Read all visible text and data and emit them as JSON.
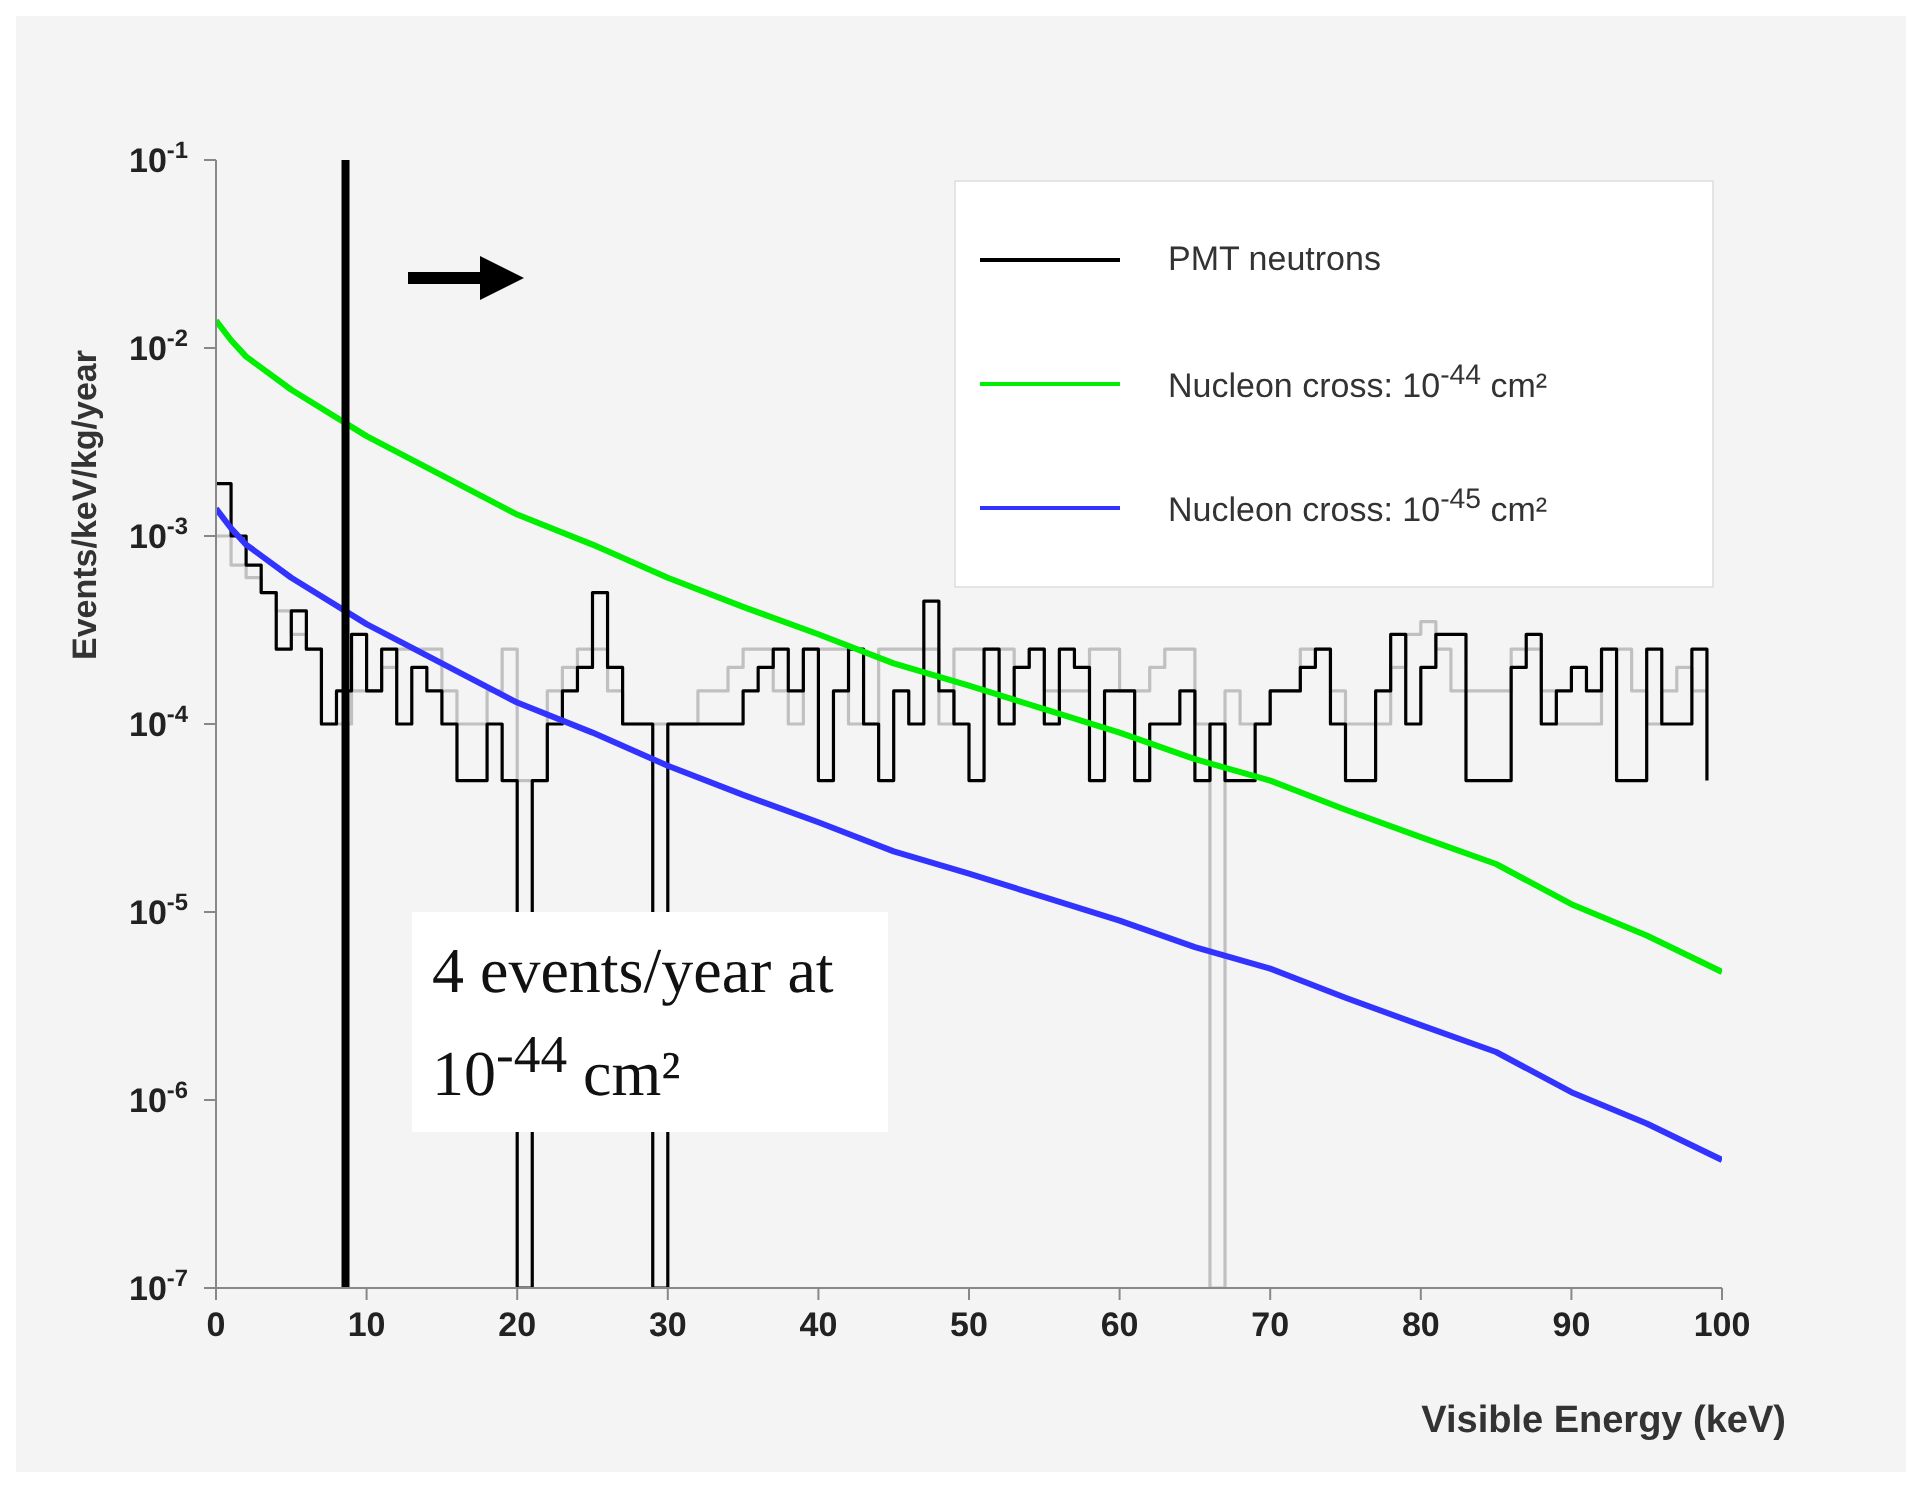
{
  "chart_data": {
    "type": "line",
    "xlabel": "Visible Energy (keV)",
    "ylabel": "Events/keV/kg/year",
    "log": "y",
    "legend": "top right",
    "xlim": [
      0,
      100
    ],
    "xticks": [
      0,
      10,
      20,
      30,
      40,
      50,
      60,
      70,
      80,
      90,
      100
    ],
    "ylim": [
      1e-07,
      0.1
    ],
    "yticks": [
      {
        "value": 1e-07,
        "label": "10$^{-7}$"
      },
      {
        "value": 1e-06,
        "label": "10$^{-6}$"
      },
      {
        "value": 1e-05,
        "label": "10$^{-5}$"
      },
      {
        "value": 0.0001,
        "label": "10$^{-4}$"
      },
      {
        "value": 0.001,
        "label": "10$^{-3}$"
      },
      {
        "value": 0.01,
        "label": "10$^{-2}$"
      },
      {
        "value": 0.1,
        "label": "10$^{-1}$"
      }
    ],
    "series": [
      {
        "type": "step",
        "color": "#c0c0c0",
        "x": [
          0,
          1,
          2,
          3,
          4,
          5,
          6,
          7,
          8,
          9,
          10,
          11,
          12,
          13,
          14,
          15,
          16,
          17,
          18,
          19,
          20,
          21,
          22,
          23,
          24,
          25,
          26,
          27,
          28,
          29,
          30,
          31,
          32,
          33,
          34,
          35,
          36,
          37,
          38,
          39,
          40,
          41,
          42,
          43,
          44,
          45,
          46,
          47,
          48,
          49,
          50,
          51,
          52,
          53,
          54,
          55,
          56,
          57,
          58,
          59,
          60,
          61,
          62,
          63,
          64,
          65,
          66,
          67,
          68,
          69,
          70,
          71,
          72,
          73,
          74,
          75,
          76,
          77,
          78,
          79,
          80,
          81,
          82,
          83,
          84,
          85,
          86,
          87,
          88,
          89,
          90,
          91,
          92,
          93,
          94,
          95,
          96,
          97,
          98,
          99
        ],
        "values": [
          0.001,
          0.0007,
          0.0006,
          0.0005,
          0.0004,
          0.0003,
          0.00025,
          0.0001,
          0.0001,
          0.00015,
          0.00015,
          0.0002,
          0.00025,
          0.00025,
          0.00025,
          0.00015,
          0.0001,
          0.0001,
          0.00015,
          0.00025,
          5e-05,
          5e-05,
          0.00015,
          0.0002,
          0.00025,
          0.00025,
          0.00015,
          0.0001,
          0.0001,
          0.0001,
          0.0001,
          0.0001,
          0.00015,
          0.00015,
          0.0002,
          0.00025,
          0.00025,
          0.00015,
          0.0001,
          0.00025,
          0.00025,
          0.00025,
          0.0001,
          0.0001,
          0.00025,
          0.00025,
          0.00025,
          0.00025,
          0.0001,
          0.00025,
          0.00025,
          0.00025,
          0.00025,
          0.0002,
          0.00025,
          0.00015,
          0.00015,
          0.00015,
          0.00025,
          0.00025,
          0.00015,
          0.00015,
          0.0002,
          0.00025,
          0.00025,
          0.0001,
          1e-07,
          0.00015,
          0.0001,
          0.0001,
          0.00015,
          0.00015,
          0.00025,
          0.00025,
          0.00015,
          0.0001,
          0.0001,
          0.0001,
          0.0002,
          0.0003,
          0.00035,
          0.00025,
          0.00015,
          0.00015,
          0.00015,
          0.00015,
          0.00025,
          0.00025,
          0.00015,
          0.0001,
          0.0001,
          0.0001,
          0.00025,
          0.00025,
          0.00015,
          0.0001,
          0.00015,
          0.0002,
          0.00015,
          0.00015
        ]
      },
      {
        "type": "step",
        "name": "PMT neutrons",
        "color": "#000000",
        "x": [
          0,
          1,
          2,
          3,
          4,
          5,
          6,
          7,
          8,
          9,
          10,
          11,
          12,
          13,
          14,
          15,
          16,
          17,
          18,
          19,
          20,
          21,
          22,
          23,
          24,
          25,
          26,
          27,
          28,
          29,
          30,
          31,
          32,
          33,
          34,
          35,
          36,
          37,
          38,
          39,
          40,
          41,
          42,
          43,
          44,
          45,
          46,
          47,
          48,
          49,
          50,
          51,
          52,
          53,
          54,
          55,
          56,
          57,
          58,
          59,
          60,
          61,
          62,
          63,
          64,
          65,
          66,
          67,
          68,
          69,
          70,
          71,
          72,
          73,
          74,
          75,
          76,
          77,
          78,
          79,
          80,
          81,
          82,
          83,
          84,
          85,
          86,
          87,
          88,
          89,
          90,
          91,
          92,
          93,
          94,
          95,
          96,
          97,
          98,
          99
        ],
        "values": [
          0.0019,
          0.001,
          0.0007,
          0.0005,
          0.00025,
          0.0004,
          0.00025,
          0.0001,
          0.00015,
          0.0003,
          0.00015,
          0.00025,
          0.0001,
          0.0002,
          0.00015,
          0.0001,
          5e-05,
          5e-05,
          0.0001,
          5e-05,
          1e-07,
          5e-05,
          0.0001,
          0.00015,
          0.0002,
          0.0005,
          0.0002,
          0.0001,
          0.0001,
          1e-07,
          0.0001,
          0.0001,
          0.0001,
          0.0001,
          0.0001,
          0.00015,
          0.0002,
          0.00025,
          0.00015,
          0.00025,
          5e-05,
          0.00015,
          0.00025,
          0.0001,
          5e-05,
          0.00015,
          0.0001,
          0.00045,
          0.00015,
          0.0001,
          5e-05,
          0.00025,
          0.0001,
          0.0002,
          0.00025,
          0.0001,
          0.00025,
          0.0002,
          5e-05,
          0.00015,
          0.00015,
          5e-05,
          0.0001,
          0.0001,
          0.00015,
          5e-05,
          0.0001,
          5e-05,
          5e-05,
          0.0001,
          0.00015,
          0.00015,
          0.0002,
          0.00025,
          0.0001,
          5e-05,
          5e-05,
          0.00015,
          0.0003,
          0.0001,
          0.0002,
          0.0003,
          0.0003,
          5e-05,
          5e-05,
          5e-05,
          0.0002,
          0.0003,
          0.0001,
          0.00015,
          0.0002,
          0.00015,
          0.00025,
          5e-05,
          5e-05,
          0.00025,
          0.0001,
          0.0001,
          0.00025,
          5e-05
        ]
      },
      {
        "name": "Nucleon cross: 10$^{-44}$ cm²",
        "color": "#00ee00",
        "x": [
          0,
          1,
          2,
          5,
          10,
          15,
          20,
          25,
          30,
          35,
          40,
          45,
          50,
          55,
          60,
          65,
          70,
          75,
          80,
          85,
          90,
          95,
          100
        ],
        "values": [
          0.014,
          0.011,
          0.009,
          0.006,
          0.0034,
          0.0021,
          0.0013,
          0.0009,
          0.0006,
          0.00042,
          0.0003,
          0.00021,
          0.00016,
          0.00012,
          9e-05,
          6.5e-05,
          5e-05,
          3.5e-05,
          2.5e-05,
          1.8e-05,
          1.1e-05,
          7.5e-06,
          4.8e-06
        ]
      },
      {
        "name": "Nucleon cross: 10$^{-45}$ cm²",
        "color": "#3333ff",
        "x": [
          0,
          1,
          2,
          5,
          10,
          15,
          20,
          25,
          30,
          35,
          40,
          45,
          50,
          55,
          60,
          65,
          70,
          75,
          80,
          85,
          90,
          95,
          100
        ],
        "values": [
          0.0014,
          0.0011,
          0.0009,
          0.0006,
          0.00034,
          0.00021,
          0.00013,
          9e-05,
          6e-05,
          4.2e-05,
          3e-05,
          2.1e-05,
          1.6e-05,
          1.2e-05,
          9e-06,
          6.5e-06,
          5e-06,
          3.5e-06,
          2.5e-06,
          1.8e-06,
          1.1e-06,
          7.5e-07,
          4.8e-07
        ]
      }
    ],
    "ref_lines": [
      {
        "axis": "x",
        "value": 8.6,
        "color": "#000000"
      }
    ],
    "annotations": [
      "4 events/year at 10$^{-44}$ cm²"
    ]
  }
}
